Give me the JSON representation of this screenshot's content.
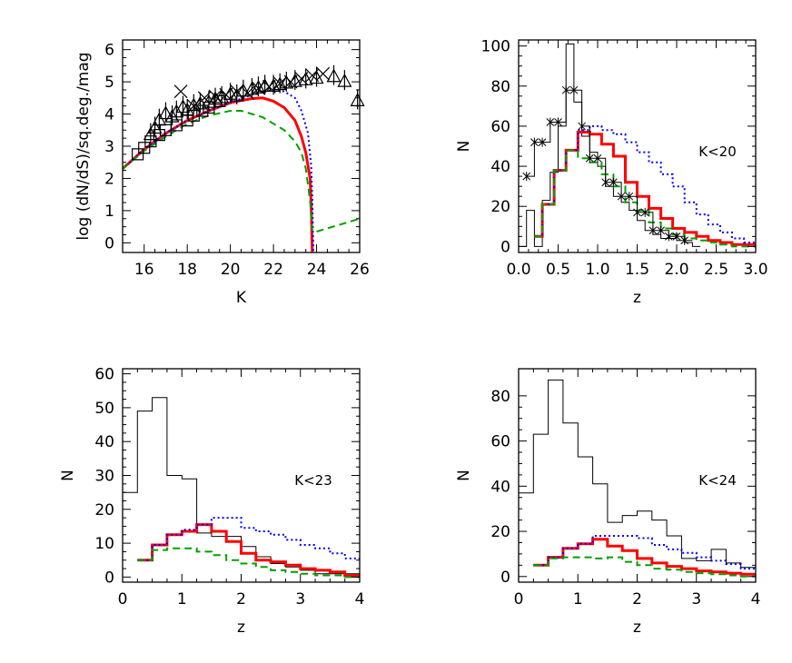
{
  "chart_data": [
    {
      "id": "panel-counts",
      "type": "line",
      "xlabel": "K",
      "ylabel": "log (dN/dS)/sq.deg./mag",
      "xlim": [
        15,
        26
      ],
      "ylim": [
        -0.3,
        6.3
      ],
      "xticks": [
        16,
        18,
        20,
        22,
        24,
        26
      ],
      "yticks": [
        0,
        1,
        2,
        3,
        4,
        5,
        6
      ],
      "annotation": "",
      "series": [
        {
          "style": "solid",
          "color": "#ff0000",
          "width": 3,
          "x": [
            15,
            16,
            17,
            18,
            19,
            20,
            20.5,
            21,
            21.5,
            22,
            22.5,
            23,
            23.3,
            23.5,
            23.7,
            23.75,
            23.8
          ],
          "y": [
            2.3,
            2.9,
            3.4,
            3.8,
            4.1,
            4.35,
            4.42,
            4.48,
            4.5,
            4.4,
            4.2,
            3.8,
            3.3,
            2.8,
            2.0,
            1.2,
            -0.3
          ]
        },
        {
          "style": "dotted",
          "color": "#0000ff",
          "width": 2,
          "x": [
            15,
            16,
            17,
            18,
            19,
            20,
            21,
            22,
            22.5,
            23,
            23.3,
            23.6,
            23.75,
            23.8,
            23.85
          ],
          "y": [
            2.3,
            2.9,
            3.4,
            3.8,
            4.1,
            4.35,
            4.6,
            4.75,
            4.7,
            4.5,
            4.1,
            3.4,
            2.4,
            1.4,
            -0.3
          ]
        },
        {
          "style": "dashed",
          "color": "#00a000",
          "width": 2,
          "x": [
            15,
            16,
            17,
            18,
            19,
            20,
            20.5,
            21,
            21.5,
            22,
            22.5,
            23,
            23.3,
            23.5,
            23.7,
            23.8,
            24,
            26
          ],
          "y": [
            2.3,
            2.85,
            3.3,
            3.7,
            3.95,
            4.1,
            4.1,
            4.0,
            3.9,
            3.7,
            3.5,
            3.15,
            2.8,
            2.3,
            1.3,
            0.35,
            0.35,
            0.75
          ]
        }
      ],
      "markers": [
        {
          "shape": "square",
          "x": [
            15.7,
            16.0,
            16.3,
            16.7,
            17.0,
            17.5,
            18.0,
            18.3,
            18.7,
            19.0,
            19.5
          ],
          "y": [
            2.75,
            2.95,
            3.15,
            3.35,
            3.5,
            3.65,
            3.8,
            3.95,
            4.1,
            4.2,
            4.4
          ]
        },
        {
          "shape": "triangle",
          "x": [
            16.3,
            16.5,
            16.7,
            17.0,
            17.3,
            17.5,
            17.8,
            18.0,
            18.3,
            18.6,
            19.0,
            19.3,
            19.6,
            20.0,
            20.3,
            20.6,
            21.0,
            21.3,
            21.6,
            22.0,
            22.3,
            22.6,
            23.0,
            23.5,
            24.0,
            24.8,
            25.3,
            25.9
          ],
          "y": [
            3.35,
            3.55,
            3.8,
            4.0,
            3.9,
            4.05,
            4.2,
            4.1,
            4.25,
            4.3,
            4.35,
            4.45,
            4.5,
            4.6,
            4.55,
            4.7,
            4.75,
            4.8,
            4.85,
            4.85,
            4.9,
            4.95,
            5.0,
            5.05,
            5.1,
            5.15,
            5.0,
            4.4
          ]
        },
        {
          "shape": "cross",
          "x": [
            17.7,
            18.3,
            18.8,
            19.3,
            19.8,
            20.3,
            20.8,
            21.3,
            21.8,
            22.3,
            22.8,
            23.3,
            23.8,
            24.3
          ],
          "y": [
            4.7,
            4.25,
            4.5,
            4.55,
            4.6,
            4.7,
            4.65,
            4.8,
            4.85,
            4.95,
            5.0,
            5.1,
            5.2,
            5.25
          ]
        }
      ]
    },
    {
      "id": "panel-z20",
      "type": "line",
      "xlabel": "z",
      "ylabel": "N",
      "xlim": [
        0,
        3
      ],
      "ylim": [
        -3,
        103
      ],
      "xticks": [
        0.0,
        0.5,
        1.0,
        1.5,
        2.0,
        2.5,
        3.0
      ],
      "xtick_labels": [
        "0.0",
        "0.5",
        "1.0",
        "1.5",
        "2.0",
        "2.5",
        "3.0"
      ],
      "yticks": [
        0,
        20,
        40,
        60,
        80,
        100
      ],
      "annotation": "K<20",
      "series": [
        {
          "style": "steps",
          "color": "#000000",
          "width": 1,
          "edges": [
            0,
            0.1,
            0.2,
            0.3,
            0.4,
            0.5,
            0.6,
            0.7,
            0.8,
            0.9,
            1.0,
            1.1,
            1.2,
            1.3,
            1.4,
            1.5,
            1.6,
            1.7,
            1.8,
            1.9,
            2.0,
            2.1,
            2.2,
            2.3
          ],
          "values": [
            0,
            18,
            0,
            23,
            37,
            60,
            101,
            72,
            55,
            47,
            40,
            30,
            25,
            22,
            18,
            13,
            8,
            6,
            4,
            4,
            3,
            2,
            0
          ]
        },
        {
          "style": "steps",
          "color": "#ff0000",
          "width": 3,
          "edges": [
            0.2,
            0.3,
            0.45,
            0.6,
            0.75,
            0.9,
            1.05,
            1.2,
            1.35,
            1.5,
            1.65,
            1.8,
            1.95,
            2.1,
            2.25,
            2.4,
            2.55,
            2.7,
            2.85,
            3.0
          ],
          "values": [
            5,
            21,
            38,
            48,
            57,
            56,
            51,
            45,
            32,
            25,
            19,
            14,
            9,
            7,
            5,
            3,
            2,
            1,
            1
          ]
        },
        {
          "style": "steps",
          "color": "#0000ff",
          "width": 2,
          "dash": "dotted",
          "edges": [
            0.2,
            0.3,
            0.45,
            0.6,
            0.75,
            0.9,
            1.05,
            1.2,
            1.35,
            1.5,
            1.65,
            1.8,
            1.95,
            2.1,
            2.25,
            2.4,
            2.55,
            2.7,
            2.85,
            3.0
          ],
          "values": [
            5,
            21,
            38,
            48,
            58,
            60,
            58,
            56,
            52,
            47,
            42,
            36,
            30,
            22,
            16,
            11,
            7,
            4,
            2
          ]
        },
        {
          "style": "steps",
          "color": "#00a000",
          "width": 2,
          "dash": "dashed",
          "edges": [
            0.2,
            0.3,
            0.45,
            0.6,
            0.75,
            0.9,
            1.05,
            1.2,
            1.35,
            1.5,
            1.65,
            1.8,
            1.95,
            2.1,
            2.25,
            2.4,
            2.55,
            2.7,
            2.85,
            3.0
          ],
          "values": [
            5,
            21,
            38,
            48,
            44,
            42,
            36,
            30,
            22,
            18,
            12,
            9,
            6,
            4,
            3,
            2,
            1,
            0,
            0
          ]
        },
        {
          "style": "steps-marker",
          "color": "#000000",
          "width": 1,
          "edges": [
            0.1,
            0.2,
            0.3,
            0.4,
            0.5,
            0.6,
            0.7,
            0.8,
            0.9,
            1.0,
            1.1,
            1.2,
            1.3,
            1.4,
            1.5,
            1.6,
            1.7,
            1.8,
            1.9,
            2.0,
            2.1,
            2.2
          ],
          "values": [
            35,
            52,
            52,
            62,
            62,
            78,
            78,
            60,
            44,
            44,
            32,
            32,
            25,
            25,
            17,
            17,
            8,
            8,
            5,
            5,
            3
          ]
        }
      ]
    },
    {
      "id": "panel-z23",
      "type": "line",
      "xlabel": "z",
      "ylabel": "N",
      "xlim": [
        0,
        4
      ],
      "ylim": [
        -1.5,
        61.5
      ],
      "xticks": [
        0,
        1,
        2,
        3,
        4
      ],
      "yticks": [
        0,
        10,
        20,
        30,
        40,
        50,
        60
      ],
      "annotation": "K<23",
      "series": [
        {
          "style": "steps",
          "color": "#000000",
          "width": 1,
          "edges": [
            0,
            0.25,
            0.5,
            0.75,
            1.0,
            1.25,
            1.5,
            1.75,
            2.0,
            2.25,
            2.5,
            2.75,
            3.0,
            3.25,
            3.5,
            3.75,
            4.0
          ],
          "values": [
            25,
            49,
            53,
            30,
            29,
            13,
            12,
            12,
            9,
            6,
            4,
            3,
            2,
            1,
            1,
            1
          ]
        },
        {
          "style": "steps",
          "color": "#ff0000",
          "width": 3,
          "edges": [
            0.25,
            0.5,
            0.75,
            1.0,
            1.25,
            1.5,
            1.75,
            2.0,
            2.25,
            2.5,
            2.75,
            3.0,
            3.25,
            3.5,
            3.75,
            4.0
          ],
          "values": [
            5,
            9.5,
            12.5,
            13.5,
            15.5,
            13.5,
            10.5,
            7,
            5,
            4.5,
            3.5,
            2.5,
            2,
            1.5,
            0.5
          ]
        },
        {
          "style": "steps",
          "color": "#0000ff",
          "width": 2,
          "dash": "dotted",
          "edges": [
            0.25,
            0.5,
            0.75,
            1.0,
            1.25,
            1.5,
            1.75,
            2.0,
            2.25,
            2.5,
            2.75,
            3.0,
            3.25,
            3.5,
            3.75,
            4.0
          ],
          "values": [
            5,
            9.5,
            12.5,
            14,
            15.5,
            17.5,
            17.5,
            14.5,
            13.5,
            12.5,
            11,
            9.5,
            8.5,
            7,
            5.5
          ]
        },
        {
          "style": "steps",
          "color": "#00a000",
          "width": 2,
          "dash": "dashed",
          "edges": [
            0.25,
            0.5,
            0.75,
            1.0,
            1.25,
            1.5,
            1.75,
            2.0,
            2.25,
            2.5,
            2.75,
            3.0,
            3.25,
            3.5,
            3.75,
            4.0
          ],
          "values": [
            5,
            8,
            8.5,
            8.5,
            7.5,
            6.5,
            5,
            4,
            3,
            2,
            1.5,
            1,
            0.5,
            0.5,
            0
          ]
        }
      ]
    },
    {
      "id": "panel-z24",
      "type": "line",
      "xlabel": "z",
      "ylabel": "N",
      "xlim": [
        0,
        4
      ],
      "ylim": [
        -2.5,
        92
      ],
      "xticks": [
        0,
        1,
        2,
        3,
        4
      ],
      "yticks": [
        0,
        20,
        40,
        60,
        80
      ],
      "annotation": "K<24",
      "series": [
        {
          "style": "steps",
          "color": "#000000",
          "width": 1,
          "edges": [
            0,
            0.25,
            0.5,
            0.75,
            1.0,
            1.25,
            1.5,
            1.75,
            2.0,
            2.25,
            2.5,
            2.75,
            3.0,
            3.25,
            3.5,
            3.75,
            4.0
          ],
          "values": [
            37,
            63,
            87,
            68,
            53,
            41,
            24,
            27,
            29,
            25,
            18,
            8,
            7,
            12,
            6,
            4
          ]
        },
        {
          "style": "steps",
          "color": "#ff0000",
          "width": 3,
          "edges": [
            0.25,
            0.5,
            0.75,
            1.0,
            1.25,
            1.5,
            1.75,
            2.0,
            2.25,
            2.5,
            2.75,
            3.0,
            3.25,
            3.5,
            3.75,
            4.0
          ],
          "values": [
            5,
            8.5,
            12.5,
            14.5,
            16.5,
            13.5,
            11.5,
            8,
            6,
            4.5,
            3.5,
            2.5,
            2,
            1.5,
            1
          ]
        },
        {
          "style": "steps",
          "color": "#0000ff",
          "width": 2,
          "dash": "dotted",
          "edges": [
            0.25,
            0.5,
            0.75,
            1.0,
            1.25,
            1.5,
            1.75,
            2.0,
            2.25,
            2.5,
            2.75,
            3.0,
            3.25,
            3.5,
            3.75,
            4.0
          ],
          "values": [
            5,
            8.5,
            12.5,
            14.5,
            18,
            18,
            18,
            17,
            14,
            12,
            10.5,
            8.5,
            7,
            5.5,
            3.5
          ]
        },
        {
          "style": "steps",
          "color": "#00a000",
          "width": 2,
          "dash": "dashed",
          "edges": [
            0.25,
            0.5,
            0.75,
            1.0,
            1.25,
            1.5,
            1.75,
            2.0,
            2.25,
            2.5,
            2.75,
            3.0,
            3.25,
            3.5,
            3.75,
            4.0
          ],
          "values": [
            5,
            8,
            8.5,
            8.5,
            8,
            8.5,
            6.5,
            5,
            3.5,
            3,
            2,
            1.5,
            1,
            0.5,
            0
          ]
        }
      ]
    }
  ]
}
